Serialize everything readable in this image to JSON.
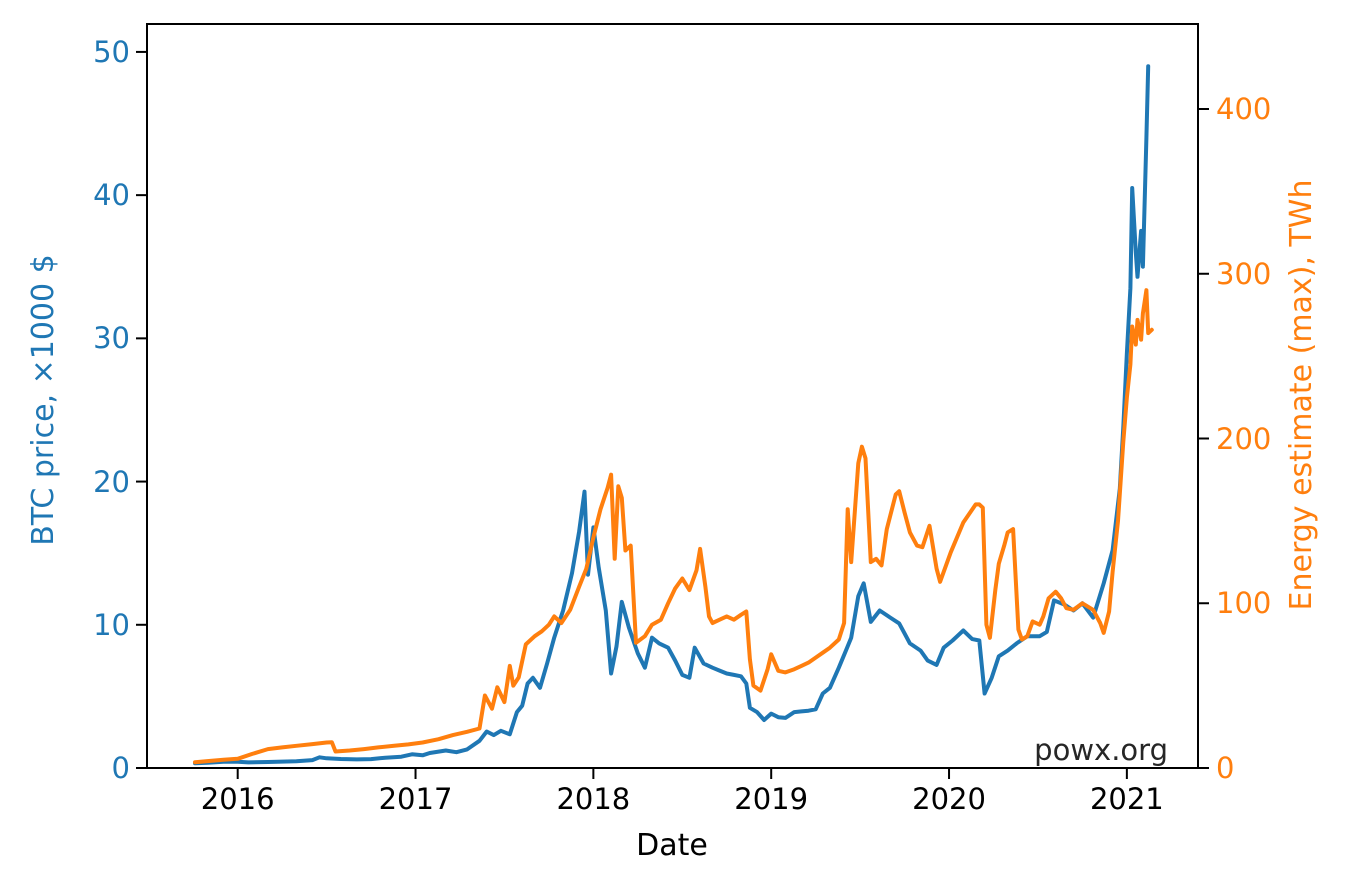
{
  "page": {
    "background": "#ffffff"
  },
  "watermark": "powx.org",
  "chart_data": {
    "type": "line",
    "title": "",
    "xlabel": "Date",
    "grid": false,
    "legend": "none",
    "x_ticks": [
      2016,
      2017,
      2018,
      2019,
      2020,
      2021
    ],
    "x_range": [
      2015.49,
      2021.4
    ],
    "left_axis": {
      "label": "BTC price, ×1000 $",
      "color": "#1f77b4",
      "ticks": [
        0,
        10,
        20,
        30,
        40,
        50
      ],
      "range": [
        0,
        51.95
      ]
    },
    "right_axis": {
      "label": "Energy estimate (max), TWh",
      "color": "#ff7f0e",
      "ticks": [
        0,
        100,
        200,
        300,
        400
      ],
      "range": [
        0,
        451.6
      ]
    },
    "series": [
      {
        "name": "BTC price",
        "axis": "left",
        "color": "#1f77b4",
        "points": [
          [
            2015.76,
            0.33
          ],
          [
            2015.83,
            0.37
          ],
          [
            2015.92,
            0.44
          ],
          [
            2016.0,
            0.43
          ],
          [
            2016.06,
            0.39
          ],
          [
            2016.17,
            0.42
          ],
          [
            2016.25,
            0.45
          ],
          [
            2016.33,
            0.47
          ],
          [
            2016.42,
            0.55
          ],
          [
            2016.46,
            0.75
          ],
          [
            2016.5,
            0.68
          ],
          [
            2016.58,
            0.63
          ],
          [
            2016.67,
            0.6
          ],
          [
            2016.75,
            0.62
          ],
          [
            2016.83,
            0.72
          ],
          [
            2016.92,
            0.79
          ],
          [
            2016.98,
            0.96
          ],
          [
            2017.04,
            0.89
          ],
          [
            2017.08,
            1.05
          ],
          [
            2017.17,
            1.22
          ],
          [
            2017.23,
            1.1
          ],
          [
            2017.29,
            1.3
          ],
          [
            2017.36,
            1.9
          ],
          [
            2017.4,
            2.55
          ],
          [
            2017.44,
            2.3
          ],
          [
            2017.48,
            2.6
          ],
          [
            2017.53,
            2.35
          ],
          [
            2017.57,
            3.9
          ],
          [
            2017.6,
            4.35
          ],
          [
            2017.63,
            5.9
          ],
          [
            2017.66,
            6.3
          ],
          [
            2017.7,
            5.6
          ],
          [
            2017.74,
            7.3
          ],
          [
            2017.78,
            9.1
          ],
          [
            2017.83,
            11.0
          ],
          [
            2017.88,
            13.6
          ],
          [
            2017.92,
            16.5
          ],
          [
            2017.95,
            19.3
          ],
          [
            2017.97,
            13.5
          ],
          [
            2018.0,
            16.8
          ],
          [
            2018.03,
            14.0
          ],
          [
            2018.07,
            11.0
          ],
          [
            2018.1,
            6.6
          ],
          [
            2018.13,
            8.5
          ],
          [
            2018.16,
            11.6
          ],
          [
            2018.2,
            9.8
          ],
          [
            2018.25,
            8.0
          ],
          [
            2018.29,
            7.0
          ],
          [
            2018.33,
            9.1
          ],
          [
            2018.37,
            8.7
          ],
          [
            2018.42,
            8.4
          ],
          [
            2018.46,
            7.5
          ],
          [
            2018.5,
            6.5
          ],
          [
            2018.54,
            6.3
          ],
          [
            2018.57,
            8.4
          ],
          [
            2018.62,
            7.3
          ],
          [
            2018.67,
            7.0
          ],
          [
            2018.71,
            6.8
          ],
          [
            2018.75,
            6.6
          ],
          [
            2018.79,
            6.5
          ],
          [
            2018.83,
            6.4
          ],
          [
            2018.86,
            5.9
          ],
          [
            2018.88,
            4.2
          ],
          [
            2018.92,
            3.9
          ],
          [
            2018.96,
            3.35
          ],
          [
            2019.0,
            3.8
          ],
          [
            2019.04,
            3.55
          ],
          [
            2019.08,
            3.5
          ],
          [
            2019.13,
            3.9
          ],
          [
            2019.17,
            3.95
          ],
          [
            2019.21,
            4.0
          ],
          [
            2019.25,
            4.1
          ],
          [
            2019.29,
            5.2
          ],
          [
            2019.33,
            5.6
          ],
          [
            2019.38,
            7.0
          ],
          [
            2019.42,
            8.2
          ],
          [
            2019.45,
            9.1
          ],
          [
            2019.49,
            12.0
          ],
          [
            2019.52,
            12.9
          ],
          [
            2019.56,
            10.2
          ],
          [
            2019.61,
            11.0
          ],
          [
            2019.67,
            10.5
          ],
          [
            2019.72,
            10.1
          ],
          [
            2019.78,
            8.7
          ],
          [
            2019.84,
            8.2
          ],
          [
            2019.88,
            7.5
          ],
          [
            2019.93,
            7.2
          ],
          [
            2019.97,
            8.4
          ],
          [
            2020.02,
            8.9
          ],
          [
            2020.08,
            9.6
          ],
          [
            2020.13,
            9.0
          ],
          [
            2020.17,
            8.9
          ],
          [
            2020.2,
            5.2
          ],
          [
            2020.24,
            6.3
          ],
          [
            2020.28,
            7.8
          ],
          [
            2020.33,
            8.2
          ],
          [
            2020.38,
            8.7
          ],
          [
            2020.44,
            9.2
          ],
          [
            2020.51,
            9.2
          ],
          [
            2020.55,
            9.5
          ],
          [
            2020.59,
            11.7
          ],
          [
            2020.65,
            11.4
          ],
          [
            2020.7,
            11.0
          ],
          [
            2020.75,
            11.5
          ],
          [
            2020.81,
            10.5
          ],
          [
            2020.87,
            12.9
          ],
          [
            2020.92,
            15.2
          ],
          [
            2020.96,
            19.5
          ],
          [
            2020.98,
            23.8
          ],
          [
            2021.0,
            29.0
          ],
          [
            2021.02,
            33.5
          ],
          [
            2021.03,
            40.5
          ],
          [
            2021.05,
            36.0
          ],
          [
            2021.06,
            34.3
          ],
          [
            2021.08,
            37.5
          ],
          [
            2021.09,
            35.0
          ],
          [
            2021.11,
            44.0
          ],
          [
            2021.12,
            49.0
          ]
        ]
      },
      {
        "name": "Energy estimate (max)",
        "axis": "right",
        "color": "#ff7f0e",
        "points": [
          [
            2015.76,
            3.5
          ],
          [
            2015.83,
            4.2
          ],
          [
            2015.92,
            5.0
          ],
          [
            2016.0,
            5.6
          ],
          [
            2016.08,
            8.5
          ],
          [
            2016.17,
            11.5
          ],
          [
            2016.25,
            12.5
          ],
          [
            2016.33,
            13.5
          ],
          [
            2016.42,
            14.5
          ],
          [
            2016.5,
            15.5
          ],
          [
            2016.53,
            15.6
          ],
          [
            2016.55,
            10.0
          ],
          [
            2016.63,
            10.6
          ],
          [
            2016.71,
            11.5
          ],
          [
            2016.79,
            12.5
          ],
          [
            2016.88,
            13.5
          ],
          [
            2016.96,
            14.3
          ],
          [
            2017.04,
            15.5
          ],
          [
            2017.13,
            17.5
          ],
          [
            2017.21,
            20.0
          ],
          [
            2017.29,
            22.0
          ],
          [
            2017.36,
            24.0
          ],
          [
            2017.39,
            44.0
          ],
          [
            2017.43,
            36.0
          ],
          [
            2017.46,
            49.0
          ],
          [
            2017.5,
            40.0
          ],
          [
            2017.53,
            62.0
          ],
          [
            2017.55,
            50.0
          ],
          [
            2017.58,
            55.0
          ],
          [
            2017.62,
            75.0
          ],
          [
            2017.67,
            80.0
          ],
          [
            2017.71,
            83.0
          ],
          [
            2017.75,
            87.0
          ],
          [
            2017.78,
            92.0
          ],
          [
            2017.82,
            88.0
          ],
          [
            2017.87,
            96.0
          ],
          [
            2017.92,
            110.0
          ],
          [
            2017.96,
            121.0
          ],
          [
            2018.0,
            140.0
          ],
          [
            2018.04,
            157.0
          ],
          [
            2018.08,
            170.0
          ],
          [
            2018.1,
            178.0
          ],
          [
            2018.12,
            127.0
          ],
          [
            2018.14,
            171.0
          ],
          [
            2018.16,
            164.0
          ],
          [
            2018.18,
            132.0
          ],
          [
            2018.21,
            135.0
          ],
          [
            2018.24,
            76.0
          ],
          [
            2018.29,
            80.0
          ],
          [
            2018.33,
            87.0
          ],
          [
            2018.38,
            90.0
          ],
          [
            2018.42,
            100.0
          ],
          [
            2018.46,
            109.0
          ],
          [
            2018.5,
            115.0
          ],
          [
            2018.54,
            108.0
          ],
          [
            2018.58,
            120.0
          ],
          [
            2018.6,
            133.0
          ],
          [
            2018.63,
            110.0
          ],
          [
            2018.65,
            92.0
          ],
          [
            2018.67,
            88.0
          ],
          [
            2018.71,
            90.0
          ],
          [
            2018.75,
            92.0
          ],
          [
            2018.79,
            90.0
          ],
          [
            2018.83,
            93.0
          ],
          [
            2018.86,
            95.0
          ],
          [
            2018.88,
            66.0
          ],
          [
            2018.9,
            50.0
          ],
          [
            2018.94,
            47.0
          ],
          [
            2018.98,
            60.0
          ],
          [
            2019.0,
            69.0
          ],
          [
            2019.04,
            59.0
          ],
          [
            2019.08,
            58.0
          ],
          [
            2019.13,
            60.0
          ],
          [
            2019.17,
            62.0
          ],
          [
            2019.21,
            64.0
          ],
          [
            2019.25,
            67.0
          ],
          [
            2019.29,
            70.0
          ],
          [
            2019.33,
            73.0
          ],
          [
            2019.38,
            78.0
          ],
          [
            2019.41,
            88.0
          ],
          [
            2019.43,
            157.0
          ],
          [
            2019.45,
            125.0
          ],
          [
            2019.49,
            185.0
          ],
          [
            2019.51,
            195.0
          ],
          [
            2019.53,
            188.0
          ],
          [
            2019.56,
            125.0
          ],
          [
            2019.59,
            127.0
          ],
          [
            2019.62,
            123.0
          ],
          [
            2019.65,
            145.0
          ],
          [
            2019.7,
            166.0
          ],
          [
            2019.72,
            168.0
          ],
          [
            2019.75,
            155.0
          ],
          [
            2019.78,
            143.0
          ],
          [
            2019.82,
            135.0
          ],
          [
            2019.85,
            134.0
          ],
          [
            2019.89,
            147.0
          ],
          [
            2019.93,
            121.0
          ],
          [
            2019.95,
            113.0
          ],
          [
            2020.01,
            131.0
          ],
          [
            2020.08,
            149.0
          ],
          [
            2020.15,
            160.0
          ],
          [
            2020.17,
            160.0
          ],
          [
            2020.19,
            158.0
          ],
          [
            2020.21,
            87.0
          ],
          [
            2020.23,
            79.0
          ],
          [
            2020.26,
            108.0
          ],
          [
            2020.28,
            124.0
          ],
          [
            2020.31,
            135.0
          ],
          [
            2020.33,
            143.0
          ],
          [
            2020.36,
            145.0
          ],
          [
            2020.39,
            84.0
          ],
          [
            2020.41,
            78.0
          ],
          [
            2020.44,
            80.0
          ],
          [
            2020.47,
            89.0
          ],
          [
            2020.51,
            87.0
          ],
          [
            2020.53,
            92.0
          ],
          [
            2020.56,
            103.0
          ],
          [
            2020.6,
            107.0
          ],
          [
            2020.63,
            103.0
          ],
          [
            2020.66,
            97.0
          ],
          [
            2020.7,
            96.0
          ],
          [
            2020.75,
            100.0
          ],
          [
            2020.81,
            96.0
          ],
          [
            2020.85,
            88.0
          ],
          [
            2020.87,
            82.0
          ],
          [
            2020.9,
            95.0
          ],
          [
            2020.92,
            119.0
          ],
          [
            2020.95,
            150.0
          ],
          [
            2020.98,
            198.0
          ],
          [
            2021.0,
            225.0
          ],
          [
            2021.02,
            245.0
          ],
          [
            2021.03,
            268.0
          ],
          [
            2021.05,
            257.0
          ],
          [
            2021.06,
            272.0
          ],
          [
            2021.08,
            260.0
          ],
          [
            2021.09,
            276.0
          ],
          [
            2021.11,
            290.0
          ],
          [
            2021.12,
            264.0
          ],
          [
            2021.14,
            266.0
          ]
        ]
      }
    ]
  }
}
